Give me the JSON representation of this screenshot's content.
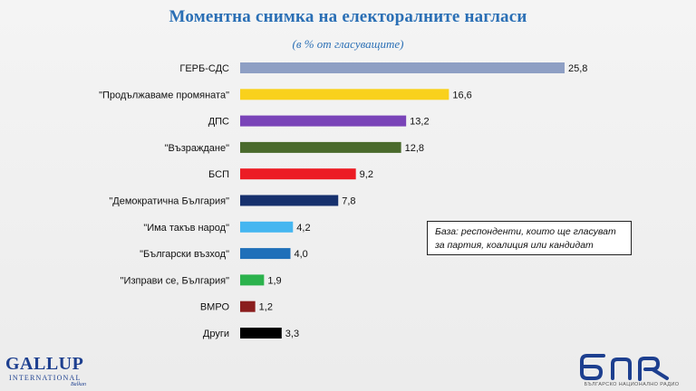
{
  "header": {
    "title": "Моментна снимка на електоралните нагласи",
    "subtitle": "(в % от гласуващите)"
  },
  "note": {
    "text": "База: респонденти, които ще гласуват за партия, коалиция или кандидат"
  },
  "logos": {
    "gallup_name": "GALLUP",
    "gallup_sub": "INTERNATIONAL",
    "gallup_region": "Balkan",
    "bnr_sub": "БЪЛГАРСКО НАЦИОНАЛНО РАДИО"
  },
  "chart_data": {
    "type": "bar",
    "orientation": "horizontal",
    "title": "Моментна снимка на електоралните нагласи",
    "subtitle": "(в % от гласуващите)",
    "xlabel": "",
    "ylabel": "",
    "xlim": [
      0,
      25.8
    ],
    "grid": false,
    "legend": "none",
    "categories": [
      "ГЕРБ-СДС",
      "\"Продължаваме промяната\"",
      "ДПС",
      "\"Възраждане\"",
      "БСП",
      "\"Демократична България\"",
      "\"Има такъв народ\"",
      "\"Български възход\"",
      "\"Изправи се, България\"",
      "ВМРО",
      "Други"
    ],
    "values": [
      25.8,
      16.6,
      13.2,
      12.8,
      9.2,
      7.8,
      4.2,
      4.0,
      1.9,
      1.2,
      3.3
    ],
    "value_labels": [
      "25,8",
      "16,6",
      "13,2",
      "12,8",
      "9,2",
      "7,8",
      "4,2",
      "4,0",
      "1,9",
      "1,2",
      "3,3"
    ],
    "colors": [
      "#8e9fc4",
      "#f9d11c",
      "#7a44b8",
      "#4a6a2c",
      "#ec1c24",
      "#16306d",
      "#45b6f0",
      "#1f6fb9",
      "#2bb24c",
      "#8a1d1d",
      "#000000"
    ]
  }
}
